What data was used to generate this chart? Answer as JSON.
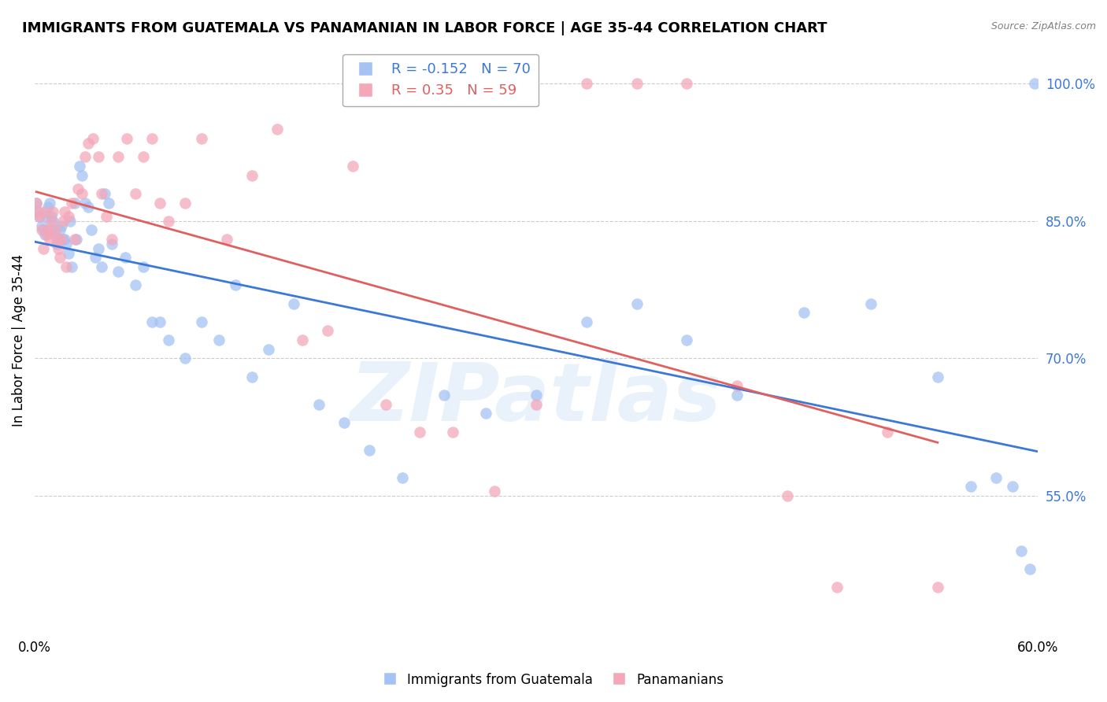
{
  "title": "IMMIGRANTS FROM GUATEMALA VS PANAMANIAN IN LABOR FORCE | AGE 35-44 CORRELATION CHART",
  "source": "Source: ZipAtlas.com",
  "xlabel_blue": "Immigrants from Guatemala",
  "xlabel_pink": "Panamanians",
  "ylabel": "In Labor Force | Age 35-44",
  "R_blue": -0.152,
  "N_blue": 70,
  "R_pink": 0.35,
  "N_pink": 59,
  "blue_scatter_color": "#a4c2f4",
  "pink_scatter_color": "#f4a7b9",
  "blue_line_color": "#3c78d8",
  "pink_line_color": "#e06060",
  "xlim": [
    0.0,
    0.6
  ],
  "ylim": [
    0.4,
    1.04
  ],
  "right_yticks": [
    0.55,
    0.7,
    0.85,
    1.0
  ],
  "right_yticklabels": [
    "55.0%",
    "70.0%",
    "85.0%",
    "100.0%"
  ],
  "xticks": [
    0.0,
    0.12,
    0.24,
    0.36,
    0.48,
    0.6
  ],
  "xticklabels": [
    "0.0%",
    "",
    "",
    "",
    "",
    "60.0%"
  ],
  "watermark": "ZIPatlas",
  "blue_x": [
    0.001,
    0.002,
    0.003,
    0.004,
    0.005,
    0.006,
    0.007,
    0.008,
    0.009,
    0.01,
    0.01,
    0.011,
    0.012,
    0.013,
    0.014,
    0.015,
    0.016,
    0.017,
    0.018,
    0.019,
    0.02,
    0.021,
    0.022,
    0.024,
    0.025,
    0.027,
    0.028,
    0.03,
    0.032,
    0.034,
    0.036,
    0.038,
    0.04,
    0.042,
    0.044,
    0.046,
    0.05,
    0.054,
    0.06,
    0.065,
    0.07,
    0.075,
    0.08,
    0.09,
    0.1,
    0.11,
    0.12,
    0.13,
    0.14,
    0.155,
    0.17,
    0.185,
    0.2,
    0.22,
    0.245,
    0.27,
    0.3,
    0.33,
    0.36,
    0.39,
    0.42,
    0.46,
    0.5,
    0.54,
    0.56,
    0.575,
    0.585,
    0.59,
    0.595,
    0.598
  ],
  "blue_y": [
    0.87,
    0.86,
    0.855,
    0.845,
    0.84,
    0.835,
    0.855,
    0.865,
    0.87,
    0.84,
    0.855,
    0.85,
    0.835,
    0.825,
    0.83,
    0.84,
    0.845,
    0.83,
    0.83,
    0.825,
    0.815,
    0.85,
    0.8,
    0.87,
    0.83,
    0.91,
    0.9,
    0.87,
    0.865,
    0.84,
    0.81,
    0.82,
    0.8,
    0.88,
    0.87,
    0.825,
    0.795,
    0.81,
    0.78,
    0.8,
    0.74,
    0.74,
    0.72,
    0.7,
    0.74,
    0.72,
    0.78,
    0.68,
    0.71,
    0.76,
    0.65,
    0.63,
    0.6,
    0.57,
    0.66,
    0.64,
    0.66,
    0.74,
    0.76,
    0.72,
    0.66,
    0.75,
    0.76,
    0.68,
    0.56,
    0.57,
    0.56,
    0.49,
    0.47,
    1.0
  ],
  "pink_x": [
    0.001,
    0.002,
    0.003,
    0.004,
    0.005,
    0.006,
    0.007,
    0.008,
    0.009,
    0.01,
    0.011,
    0.012,
    0.013,
    0.014,
    0.015,
    0.016,
    0.017,
    0.018,
    0.019,
    0.02,
    0.022,
    0.024,
    0.026,
    0.028,
    0.03,
    0.032,
    0.035,
    0.038,
    0.04,
    0.043,
    0.046,
    0.05,
    0.055,
    0.06,
    0.065,
    0.07,
    0.075,
    0.08,
    0.09,
    0.1,
    0.115,
    0.13,
    0.145,
    0.16,
    0.175,
    0.19,
    0.21,
    0.23,
    0.25,
    0.275,
    0.3,
    0.33,
    0.36,
    0.39,
    0.42,
    0.45,
    0.48,
    0.51,
    0.54
  ],
  "pink_y": [
    0.87,
    0.86,
    0.855,
    0.84,
    0.82,
    0.86,
    0.835,
    0.84,
    0.83,
    0.85,
    0.86,
    0.84,
    0.83,
    0.82,
    0.81,
    0.83,
    0.85,
    0.86,
    0.8,
    0.855,
    0.87,
    0.83,
    0.885,
    0.88,
    0.92,
    0.935,
    0.94,
    0.92,
    0.88,
    0.855,
    0.83,
    0.92,
    0.94,
    0.88,
    0.92,
    0.94,
    0.87,
    0.85,
    0.87,
    0.94,
    0.83,
    0.9,
    0.95,
    0.72,
    0.73,
    0.91,
    0.65,
    0.62,
    0.62,
    0.555,
    0.65,
    1.0,
    1.0,
    1.0,
    0.67,
    0.55,
    0.45,
    0.62,
    0.45
  ]
}
